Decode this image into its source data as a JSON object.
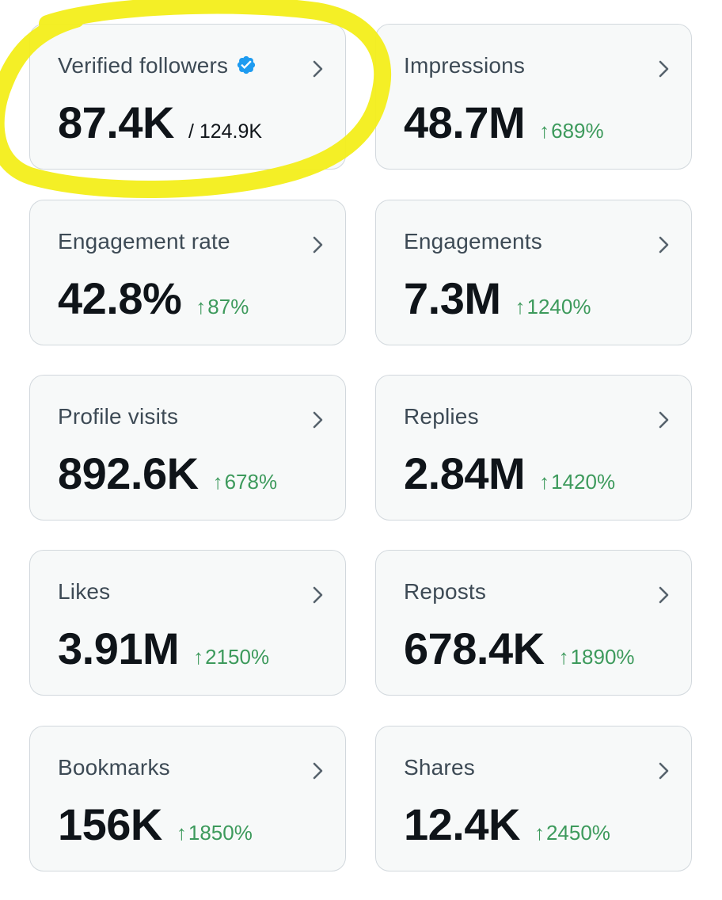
{
  "accent_colors": {
    "delta_positive": "#3d9a5c",
    "verified_badge": "#1d9bf0",
    "highlight_marker": "#f3ee1a"
  },
  "cards": [
    {
      "label": "Verified followers",
      "value": "87.4K",
      "sub": "/ 124.9K",
      "verified": true
    },
    {
      "label": "Impressions",
      "value": "48.7M",
      "delta": "689%"
    },
    {
      "label": "Engagement rate",
      "value": "42.8%",
      "delta": "87%"
    },
    {
      "label": "Engagements",
      "value": "7.3M",
      "delta": "1240%"
    },
    {
      "label": "Profile visits",
      "value": "892.6K",
      "delta": "678%"
    },
    {
      "label": "Replies",
      "value": "2.84M",
      "delta": "1420%"
    },
    {
      "label": "Likes",
      "value": "3.91M",
      "delta": "2150%"
    },
    {
      "label": "Reposts",
      "value": "678.4K",
      "delta": "1890%"
    },
    {
      "label": "Bookmarks",
      "value": "156K",
      "delta": "1850%"
    },
    {
      "label": "Shares",
      "value": "12.4K",
      "delta": "2450%"
    }
  ],
  "icons": {
    "chevron": "chevron-right-icon",
    "verified": "verified-badge-icon",
    "arrow": "arrow-up-icon"
  },
  "arrow_glyph": "↑"
}
